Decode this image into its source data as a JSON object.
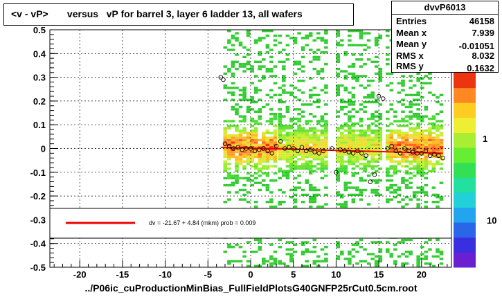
{
  "title": "<v - vP>       versus   vP for barrel 3, layer 6 ladder 13, all wafers",
  "footer": "../P06ic_cuProductionMinBias_FullFieldPlotsG40GNFP25rCut0.5cm.root",
  "stats": {
    "name": "dvvP6013",
    "rows": [
      {
        "label": "Entries",
        "value": "46158"
      },
      {
        "label": "Mean x",
        "value": "7.939"
      },
      {
        "label": "Mean y",
        "value": "-0.01051"
      },
      {
        "label": "RMS x",
        "value": "8.032"
      },
      {
        "label": "RMS y",
        "value": "0.1632"
      }
    ]
  },
  "fit": {
    "text": "dv =  -21.67 +   4.84 (mkm) prob = 0.009",
    "color": "#ee0000"
  },
  "palette_labels": [
    "1",
    "10"
  ],
  "chart_data": {
    "type": "heatmap",
    "title": "<v - vP>       versus   vP for barrel 3, layer 6 ladder 13, all wafers",
    "xlim": [
      -23.5,
      23.5
    ],
    "ylim": [
      -0.5,
      0.5
    ],
    "x_ticks": [
      -20,
      -15,
      -10,
      -5,
      0,
      5,
      10,
      15,
      20
    ],
    "y_ticks": [
      -0.5,
      -0.4,
      -0.3,
      -0.2,
      -0.1,
      0,
      0.1,
      0.2,
      0.3,
      0.4,
      0.5
    ],
    "grid": true,
    "occupied_x_ranges": [
      [
        -3.2,
        2.8
      ],
      [
        3.2,
        8.8
      ],
      [
        10.0,
        15.0
      ],
      [
        15.8,
        22.5
      ]
    ],
    "fit_line": {
      "x": [
        -3.5,
        22.5
      ],
      "y": [
        0.005,
        -0.02
      ]
    },
    "profile_points": {
      "x": [
        -3.5,
        -3.2,
        -3.0,
        -2.5,
        -2.0,
        -1.5,
        -1.0,
        -0.5,
        0.0,
        0.5,
        1.0,
        1.5,
        2.0,
        2.5,
        3.0,
        3.5,
        4.0,
        4.5,
        5.0,
        5.5,
        6.0,
        6.5,
        7.0,
        7.5,
        8.0,
        8.5,
        9.5,
        10.0,
        10.5,
        11.0,
        11.5,
        12.0,
        12.5,
        13.0,
        13.5,
        14.0,
        14.5,
        15.0,
        15.5,
        16.0,
        16.5,
        17.0,
        17.5,
        18.0,
        18.5,
        19.0,
        19.5,
        20.0,
        20.5,
        21.0,
        21.5,
        22.0,
        22.5
      ],
      "y": [
        0.3,
        0.29,
        0.02,
        0.01,
        0.0,
        0.005,
        -0.005,
        0.0,
        0.0,
        -0.01,
        -0.005,
        0.0,
        -0.01,
        -0.02,
        0.01,
        0.03,
        0.0,
        0.005,
        0.0,
        -0.01,
        0.005,
        -0.01,
        -0.005,
        -0.015,
        -0.02,
        -0.01,
        0.0,
        -0.1,
        -0.005,
        -0.01,
        -0.015,
        -0.02,
        -0.01,
        -0.02,
        -0.03,
        -0.14,
        -0.11,
        0.22,
        0.21,
        0.0,
        0.01,
        -0.01,
        -0.02,
        0.0,
        -0.01,
        -0.015,
        -0.02,
        -0.02,
        -0.01,
        -0.03,
        -0.025,
        -0.03,
        -0.04
      ]
    }
  }
}
